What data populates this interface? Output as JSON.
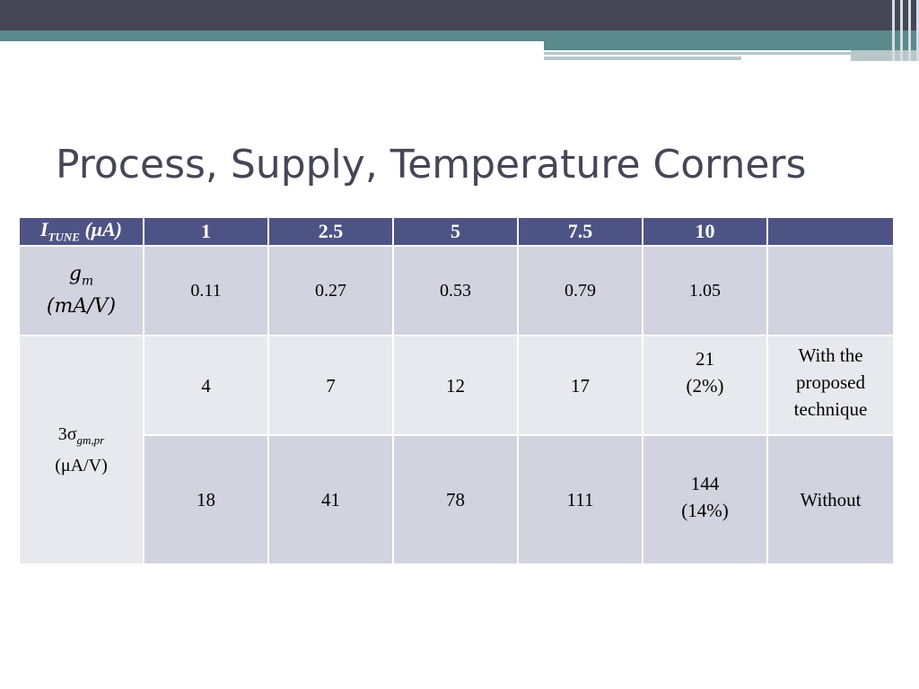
{
  "slide": {
    "title": "Process, Supply, Temperature Corners"
  },
  "table": {
    "header": {
      "label_main": "I",
      "label_sub": "TUNE",
      "label_unit": " (μA)",
      "values": [
        "1",
        "2.5",
        "5",
        "7.5",
        "10",
        ""
      ]
    },
    "gm_row": {
      "label_main": "g",
      "label_sub": "m",
      "label_unit": "(mA/V)",
      "values": [
        "0.11",
        "0.27",
        "0.53",
        "0.79",
        "1.05",
        ""
      ]
    },
    "sigma_label": {
      "prefix": "3σ",
      "sub": "gm,pr",
      "unit": "(μA/V)"
    },
    "with_row": {
      "values": [
        "4",
        "7",
        "12",
        "17"
      ],
      "last_value": "21",
      "last_pct": "(2%)",
      "note_lines": [
        "With the",
        "proposed",
        "technique"
      ]
    },
    "without_row": {
      "values": [
        "18",
        "41",
        "78",
        "111"
      ],
      "last_value": "144",
      "last_pct": "(14%)",
      "note": "Without"
    }
  }
}
